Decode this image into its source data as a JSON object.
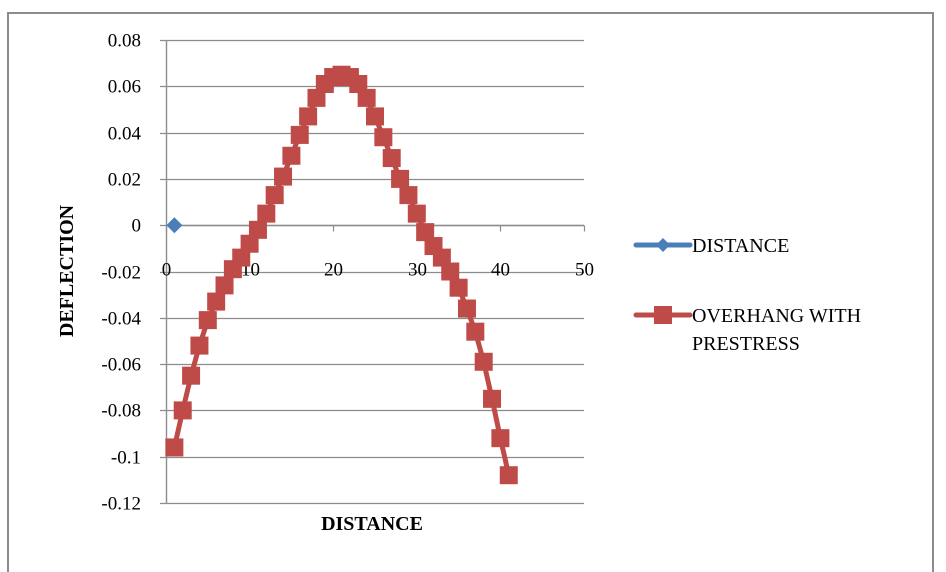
{
  "chart_data": {
    "type": "scatter",
    "title": "",
    "xlabel": "DISTANCE",
    "ylabel": "DEFLECTION",
    "xlim": [
      0,
      50
    ],
    "ylim": [
      -0.12,
      0.08
    ],
    "x_ticks": [
      0,
      10,
      20,
      30,
      40,
      50
    ],
    "x_tick_labels": [
      "0",
      "10",
      "20",
      "30",
      "40",
      "50"
    ],
    "y_ticks": [
      0.08,
      0.06,
      0.04,
      0.02,
      0,
      -0.02,
      -0.04,
      -0.06,
      -0.08,
      -0.1,
      -0.12
    ],
    "y_tick_labels": [
      "0.08",
      "0.06",
      "0.04",
      "0.02",
      "0",
      "-0.02",
      "-0.04",
      "-0.06",
      "-0.08",
      "-0.1",
      "-0.12"
    ],
    "grid": {
      "horizontal": true,
      "vertical": false
    },
    "x_axis_crosses_at": 0,
    "legend": {
      "position": "right",
      "entries": [
        "DISTANCE",
        "OVERHANG WITH PRESTRESS"
      ]
    },
    "series": [
      {
        "name": "DISTANCE",
        "color": "#4a7ebb",
        "marker": "diamond",
        "x": [
          1
        ],
        "y": [
          0
        ]
      },
      {
        "name": "OVERHANG WITH PRESTRESS",
        "color": "#be4b48",
        "marker": "square",
        "x": [
          1,
          2,
          3,
          4,
          5,
          6,
          7,
          8,
          9,
          10,
          11,
          12,
          13,
          14,
          15,
          16,
          17,
          18,
          19,
          20,
          21,
          22,
          23,
          24,
          25,
          26,
          27,
          28,
          29,
          30,
          31,
          32,
          33,
          34,
          35,
          36,
          37,
          38,
          39,
          40,
          41
        ],
        "y": [
          -0.096,
          -0.08,
          -0.065,
          -0.052,
          -0.041,
          -0.033,
          -0.026,
          -0.019,
          -0.014,
          -0.008,
          -0.002,
          0.005,
          0.013,
          0.021,
          0.03,
          0.039,
          0.047,
          0.055,
          0.061,
          0.064,
          0.065,
          0.064,
          0.061,
          0.055,
          0.047,
          0.038,
          0.029,
          0.02,
          0.013,
          0.005,
          -0.003,
          -0.009,
          -0.014,
          -0.02,
          -0.027,
          -0.036,
          -0.046,
          -0.059,
          -0.075,
          -0.092,
          -0.108
        ]
      }
    ]
  },
  "axes": {
    "x_title": "DISTANCE",
    "y_title": "DEFLECTION"
  },
  "legend": {
    "items": [
      {
        "label_lines": [
          "DISTANCE"
        ],
        "color": "#4a7ebb",
        "marker": "diamond-icon"
      },
      {
        "label_lines": [
          "OVERHANG WITH",
          "PRESTRESS"
        ],
        "color": "#be4b48",
        "marker": "square-icon"
      }
    ]
  },
  "style": {
    "gridline_color": "#8c8c8c",
    "axis_color": "#8c8c8c",
    "frame_color": "#8c8c8c"
  }
}
